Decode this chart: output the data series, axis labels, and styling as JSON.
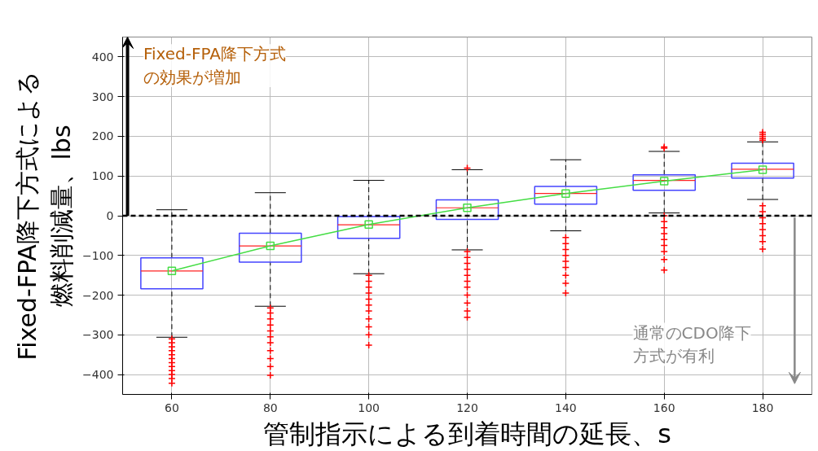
{
  "chart_data": {
    "type": "box",
    "xlabel": "管制指示による到着時間の延長、s",
    "ylabel": "Fixed-FPA降下方式による燃料削減量、lbs",
    "x": [
      60,
      80,
      100,
      120,
      140,
      160,
      180
    ],
    "xlim": [
      50,
      190
    ],
    "xticks": [
      60,
      80,
      100,
      120,
      140,
      160,
      180
    ],
    "ylim": [
      -450,
      450
    ],
    "yticks": [
      -400,
      -300,
      -200,
      -100,
      0,
      100,
      200,
      300,
      400
    ],
    "grid": true,
    "series": [
      {
        "color": "#4444ff",
        "boxes": [
          {
            "low": -306,
            "q1": -184,
            "median": -139,
            "q3": -106,
            "high": 15,
            "outliers": [
              -310,
              -320,
              -330,
              -340,
              -350,
              -360,
              -370,
              -380,
              -390,
              -400,
              -410,
              -422
            ]
          },
          {
            "low": -228,
            "q1": -117,
            "median": -76,
            "q3": -44,
            "high": 58,
            "outliers": [
              -232,
              -245,
              -260,
              -275,
              -290,
              -305,
              -320,
              -340,
              -360,
              -380,
              -402
            ]
          },
          {
            "low": -146,
            "q1": -57,
            "median": -23,
            "q3": -2,
            "high": 89,
            "outliers": [
              -150,
              -165,
              -180,
              -195,
              -210,
              -225,
              -240,
              -260,
              -280,
              -300,
              -326
            ]
          },
          {
            "low": -86,
            "q1": -9,
            "median": 20,
            "q3": 40,
            "high": 116,
            "outliers": [
              120,
              -90,
              -105,
              -120,
              -135,
              -150,
              -165,
              -180,
              -200,
              -220,
              -240,
              -256
            ]
          },
          {
            "low": -38,
            "q1": 29,
            "median": 56,
            "q3": 74,
            "high": 141,
            "outliers": [
              -55,
              -70,
              -85,
              -100,
              -115,
              -130,
              -150,
              -170,
              -195
            ]
          },
          {
            "low": 7,
            "q1": 64,
            "median": 89,
            "q3": 103,
            "high": 162,
            "outliers": [
              170,
              173,
              0,
              -15,
              -30,
              -45,
              -60,
              -75,
              -90,
              -110,
              -137
            ]
          },
          {
            "low": 41,
            "q1": 95,
            "median": 117,
            "q3": 132,
            "high": 186,
            "outliers": [
              190,
              195,
              200,
              205,
              210,
              25,
              10,
              -5,
              -20,
              -35,
              -50,
              -65,
              -84
            ]
          }
        ]
      },
      {
        "type": "line",
        "color": "#44dd44",
        "marker": "square",
        "values": [
          -139,
          -76,
          -22,
          20,
          56,
          87,
          116
        ]
      }
    ],
    "ref_lines": [
      {
        "axis": "y",
        "value": 0,
        "color": "#000000",
        "line_style": "dashed"
      }
    ],
    "annotations": [
      {
        "text": "Fixed-FPA降下方式の効果が増加",
        "x": 51,
        "y": 0
      },
      "通常のCDO降下方式が有利"
    ]
  }
}
